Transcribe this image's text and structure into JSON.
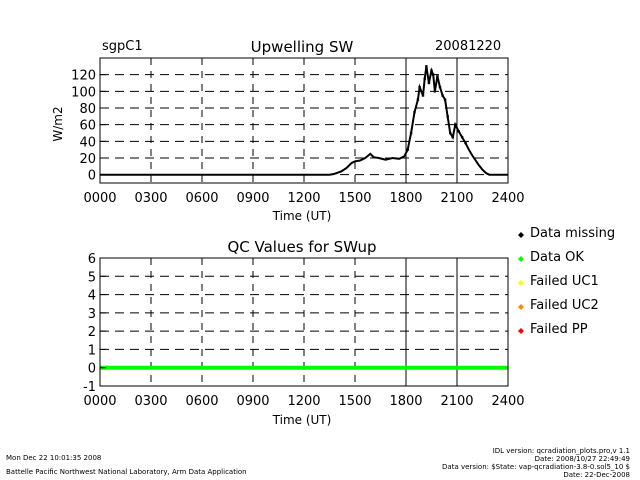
{
  "header": {
    "site": "sgpC1",
    "date": "20081220"
  },
  "footer": {
    "timestamp": "Mon Dec 22 10:01:35 2008",
    "institution": "Battelle Pacific Northwest National Laboratory, Arm Data Application",
    "idl_version": "IDL version: qcradiation_plots.pro,v 1.1",
    "idl_date": "Date: 2008/10/27 22:49:49",
    "data_version": "Data version: $State: vap-qcradiation-3.8-0.sol5_10 $",
    "data_date": "Date: 22-Dec-2008"
  },
  "legend": [
    {
      "label": "Data missing",
      "color": "#000000"
    },
    {
      "label": "Data OK",
      "color": "#00ff00"
    },
    {
      "label": "Failed UC1",
      "color": "#ffff00"
    },
    {
      "label": "Failed UC2",
      "color": "#ff8c00"
    },
    {
      "label": "Failed PP",
      "color": "#ff0000"
    }
  ],
  "chart_data": [
    {
      "type": "scatter",
      "title": "Upwelling SW",
      "xlabel": "Time (UT)",
      "ylabel": "W/m2",
      "xlim": [
        0,
        2400
      ],
      "ylim": [
        -10,
        140
      ],
      "xticks": [
        "0000",
        "0300",
        "0600",
        "0900",
        "1200",
        "1500",
        "1800",
        "2100",
        "2400"
      ],
      "yticks": [
        0,
        20,
        40,
        60,
        80,
        100,
        120
      ],
      "grid": true,
      "series": [
        {
          "values_xy": [
            [
              0,
              0
            ],
            [
              300,
              0
            ],
            [
              600,
              0
            ],
            [
              900,
              0
            ],
            [
              1200,
              0
            ],
            [
              1350,
              0
            ],
            [
              1380,
              1
            ],
            [
              1420,
              4
            ],
            [
              1450,
              8
            ],
            [
              1480,
              14
            ],
            [
              1500,
              16
            ],
            [
              1530,
              17
            ],
            [
              1560,
              20
            ],
            [
              1590,
              25
            ],
            [
              1610,
              21
            ],
            [
              1640,
              20
            ],
            [
              1680,
              18
            ],
            [
              1720,
              20
            ],
            [
              1760,
              19
            ],
            [
              1790,
              22
            ],
            [
              1810,
              30
            ],
            [
              1830,
              50
            ],
            [
              1850,
              75
            ],
            [
              1870,
              90
            ],
            [
              1880,
              105
            ],
            [
              1900,
              95
            ],
            [
              1910,
              115
            ],
            [
              1920,
              130
            ],
            [
              1935,
              110
            ],
            [
              1950,
              125
            ],
            [
              1960,
              120
            ],
            [
              1970,
              100
            ],
            [
              1985,
              118
            ],
            [
              2000,
              105
            ],
            [
              2015,
              95
            ],
            [
              2030,
              90
            ],
            [
              2045,
              70
            ],
            [
              2060,
              50
            ],
            [
              2075,
              45
            ],
            [
              2090,
              60
            ],
            [
              2110,
              52
            ],
            [
              2130,
              45
            ],
            [
              2150,
              38
            ],
            [
              2170,
              30
            ],
            [
              2190,
              23
            ],
            [
              2210,
              17
            ],
            [
              2230,
              11
            ],
            [
              2250,
              6
            ],
            [
              2270,
              2
            ],
            [
              2290,
              0
            ],
            [
              2400,
              0
            ]
          ]
        }
      ]
    },
    {
      "type": "line",
      "title": "QC Values for SWup",
      "xlabel": "Time (UT)",
      "ylabel": "",
      "xlim": [
        0,
        2400
      ],
      "ylim": [
        -1,
        6
      ],
      "xticks": [
        "0000",
        "0300",
        "0600",
        "0900",
        "1200",
        "1500",
        "1800",
        "2100",
        "2400"
      ],
      "yticks": [
        -1,
        0,
        1,
        2,
        3,
        4,
        5,
        6
      ],
      "grid": true,
      "series": [
        {
          "name": "Data OK",
          "color": "#00ff00",
          "values_xy": [
            [
              0,
              0
            ],
            [
              2400,
              0
            ]
          ]
        }
      ]
    }
  ]
}
